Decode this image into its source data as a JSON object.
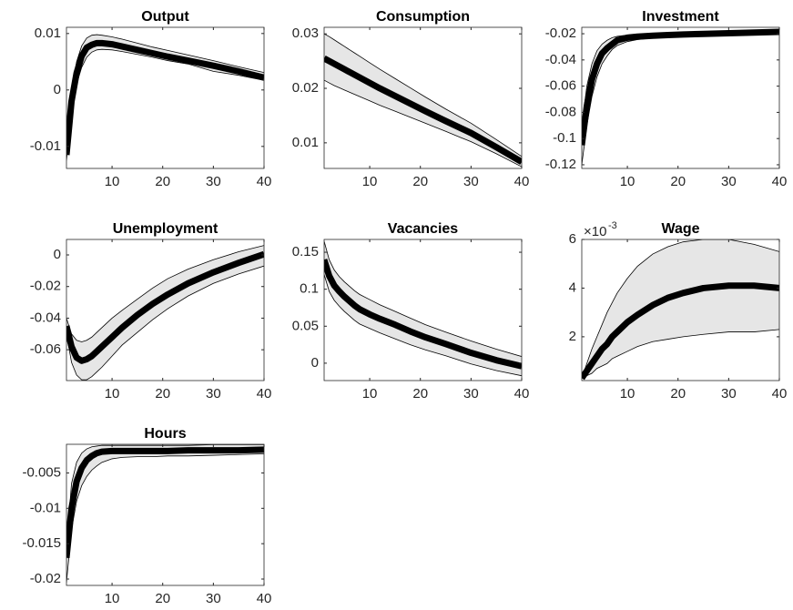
{
  "chart_data": [
    {
      "type": "line",
      "title": "Output",
      "x": [
        1,
        2,
        3,
        4,
        5,
        6,
        7,
        8,
        10,
        12,
        15,
        18,
        21,
        25,
        30,
        35,
        40
      ],
      "xlim": [
        1,
        40
      ],
      "xticks": [
        10,
        20,
        30,
        40
      ],
      "ylim": [
        -0.0139,
        0.0111
      ],
      "yticks": [
        -0.01,
        0,
        0.01
      ],
      "band_color": "#e6e6e6",
      "series": [
        {
          "color": "#000000",
          "values": [
            -0.0115,
            -0.002,
            0.003,
            0.006,
            0.0075,
            0.008,
            0.0083,
            0.0083,
            0.0081,
            0.0077,
            0.0071,
            0.0065,
            0.0059,
            0.0052,
            0.0043,
            0.0033,
            0.0022
          ],
          "lower": [
            -0.0125,
            -0.004,
            0.001,
            0.004,
            0.0058,
            0.0067,
            0.0071,
            0.0072,
            0.0071,
            0.0068,
            0.0063,
            0.0058,
            0.0052,
            0.0046,
            0.0033,
            0.0026,
            0.0017
          ],
          "upper": [
            -0.0105,
            0.0,
            0.005,
            0.0078,
            0.0092,
            0.0097,
            0.0098,
            0.0097,
            0.0094,
            0.009,
            0.0083,
            0.0076,
            0.007,
            0.0062,
            0.0052,
            0.0041,
            0.0031
          ]
        }
      ]
    },
    {
      "type": "line",
      "title": "Consumption",
      "x": [
        1,
        2,
        3,
        4,
        5,
        6,
        7,
        8,
        10,
        12,
        15,
        18,
        21,
        25,
        30,
        35,
        40
      ],
      "xlim": [
        1,
        40
      ],
      "xticks": [
        10,
        20,
        30,
        40
      ],
      "ylim": [
        0.0053,
        0.0312
      ],
      "yticks": [
        0.01,
        0.02,
        0.03
      ],
      "band_color": "#e6e6e6",
      "series": [
        {
          "color": "#000000",
          "values": [
            0.0255,
            0.025,
            0.0245,
            0.024,
            0.0235,
            0.023,
            0.0225,
            0.022,
            0.021,
            0.02,
            0.0186,
            0.0172,
            0.0158,
            0.014,
            0.0118,
            0.0092,
            0.0065
          ],
          "lower": [
            0.0215,
            0.021,
            0.0205,
            0.0201,
            0.0197,
            0.0193,
            0.0189,
            0.0185,
            0.0177,
            0.0169,
            0.0158,
            0.0147,
            0.0136,
            0.0121,
            0.0102,
            0.008,
            0.0056
          ],
          "upper": [
            0.03,
            0.0295,
            0.0289,
            0.0283,
            0.0277,
            0.0271,
            0.0265,
            0.0259,
            0.0247,
            0.0235,
            0.0218,
            0.0201,
            0.0184,
            0.0162,
            0.0136,
            0.0106,
            0.0075
          ]
        }
      ]
    },
    {
      "type": "line",
      "title": "Investment",
      "x": [
        1,
        2,
        3,
        4,
        5,
        6,
        7,
        8,
        10,
        12,
        15,
        18,
        21,
        25,
        30,
        35,
        40
      ],
      "xlim": [
        1,
        40
      ],
      "xticks": [
        10,
        20,
        30,
        40
      ],
      "ylim": [
        -0.1228,
        -0.0151
      ],
      "yticks": [
        -0.12,
        -0.1,
        -0.08,
        -0.06,
        -0.04,
        -0.02
      ],
      "band_color": "#e6e6e6",
      "series": [
        {
          "color": "#000000",
          "values": [
            -0.105,
            -0.075,
            -0.055,
            -0.043,
            -0.035,
            -0.031,
            -0.028,
            -0.025,
            -0.023,
            -0.0222,
            -0.0215,
            -0.021,
            -0.0206,
            -0.0201,
            -0.0196,
            -0.0191,
            -0.0186
          ],
          "lower": [
            -0.12,
            -0.09,
            -0.068,
            -0.053,
            -0.043,
            -0.037,
            -0.032,
            -0.029,
            -0.026,
            -0.0245,
            -0.0232,
            -0.0224,
            -0.0217,
            -0.021,
            -0.0203,
            -0.0197,
            -0.0191
          ],
          "upper": [
            -0.09,
            -0.06,
            -0.043,
            -0.033,
            -0.028,
            -0.025,
            -0.023,
            -0.022,
            -0.021,
            -0.0203,
            -0.0199,
            -0.0196,
            -0.0194,
            -0.0191,
            -0.0188,
            -0.0184,
            -0.018
          ]
        }
      ]
    },
    {
      "type": "line",
      "title": "Unemployment",
      "x": [
        1,
        2,
        3,
        4,
        5,
        6,
        7,
        8,
        10,
        12,
        15,
        18,
        21,
        25,
        30,
        35,
        40
      ],
      "xlim": [
        1,
        40
      ],
      "xticks": [
        10,
        20,
        30,
        40
      ],
      "ylim": [
        -0.0795,
        0.0098
      ],
      "yticks": [
        -0.06,
        -0.04,
        -0.02,
        0
      ],
      "band_color": "#e6e6e6",
      "series": [
        {
          "color": "#000000",
          "values": [
            -0.045,
            -0.058,
            -0.065,
            -0.067,
            -0.066,
            -0.064,
            -0.061,
            -0.058,
            -0.052,
            -0.046,
            -0.038,
            -0.031,
            -0.025,
            -0.018,
            -0.011,
            -0.005,
            0.0005
          ],
          "lower": [
            -0.05,
            -0.068,
            -0.076,
            -0.079,
            -0.079,
            -0.077,
            -0.074,
            -0.071,
            -0.064,
            -0.057,
            -0.049,
            -0.041,
            -0.034,
            -0.026,
            -0.018,
            -0.012,
            -0.007
          ],
          "upper": [
            -0.04,
            -0.05,
            -0.054,
            -0.055,
            -0.054,
            -0.052,
            -0.049,
            -0.046,
            -0.04,
            -0.035,
            -0.028,
            -0.021,
            -0.015,
            -0.009,
            -0.003,
            0.002,
            0.006
          ]
        }
      ]
    },
    {
      "type": "line",
      "title": "Vacancies",
      "x": [
        1,
        2,
        3,
        4,
        5,
        6,
        7,
        8,
        10,
        12,
        15,
        18,
        21,
        25,
        30,
        35,
        40
      ],
      "xlim": [
        1,
        40
      ],
      "xticks": [
        10,
        20,
        30,
        40
      ],
      "ylim": [
        -0.0235,
        0.1673
      ],
      "yticks": [
        0,
        0.05,
        0.1,
        0.15
      ],
      "band_color": "#e6e6e6",
      "series": [
        {
          "color": "#000000",
          "values": [
            0.14,
            0.118,
            0.105,
            0.097,
            0.09,
            0.084,
            0.078,
            0.073,
            0.066,
            0.06,
            0.052,
            0.043,
            0.035,
            0.026,
            0.014,
            0.004,
            -0.004
          ],
          "lower": [
            0.12,
            0.097,
            0.085,
            0.077,
            0.07,
            0.064,
            0.058,
            0.053,
            0.047,
            0.041,
            0.033,
            0.025,
            0.018,
            0.01,
            -0.001,
            -0.01,
            -0.017
          ],
          "upper": [
            0.165,
            0.14,
            0.126,
            0.117,
            0.11,
            0.104,
            0.098,
            0.093,
            0.086,
            0.079,
            0.07,
            0.061,
            0.052,
            0.042,
            0.03,
            0.019,
            0.009
          ]
        }
      ]
    },
    {
      "type": "line",
      "title": "Wage",
      "y_multiplier": {
        "base": "×10",
        "exponent": "-3"
      },
      "x": [
        1,
        2,
        3,
        4,
        5,
        6,
        7,
        8,
        10,
        12,
        15,
        18,
        21,
        25,
        30,
        35,
        40
      ],
      "xlim": [
        1,
        40
      ],
      "xticks": [
        10,
        20,
        30,
        40
      ],
      "ylim": [
        0.0002,
        0.006
      ],
      "yticks": [
        {
          "value": 0.002,
          "label": "2"
        },
        {
          "value": 0.004,
          "label": "4"
        },
        {
          "value": 0.006,
          "label": "6"
        }
      ],
      "band_color": "#e6e6e6",
      "series": [
        {
          "color": "#000000",
          "values": [
            0.0003,
            0.0006,
            0.0009,
            0.0012,
            0.0015,
            0.0017,
            0.002,
            0.0022,
            0.0026,
            0.0029,
            0.0033,
            0.0036,
            0.0038,
            0.004,
            0.0041,
            0.0041,
            0.004
          ],
          "lower": [
            0.0003,
            0.0004,
            0.0005,
            0.0007,
            0.0008,
            0.0009,
            0.0011,
            0.0012,
            0.0014,
            0.0016,
            0.0018,
            0.0019,
            0.002,
            0.0021,
            0.0022,
            0.0022,
            0.0023
          ],
          "upper": [
            0.0003,
            0.0009,
            0.0015,
            0.002,
            0.0025,
            0.003,
            0.0034,
            0.0038,
            0.0044,
            0.0049,
            0.0054,
            0.0057,
            0.0059,
            0.006,
            0.006,
            0.0058,
            0.0055
          ]
        }
      ]
    },
    {
      "type": "line",
      "title": "Hours",
      "x": [
        1,
        2,
        3,
        4,
        5,
        6,
        7,
        8,
        10,
        12,
        15,
        18,
        21,
        25,
        30,
        35,
        40
      ],
      "xlim": [
        1,
        40
      ],
      "xticks": [
        10,
        20,
        30,
        40
      ],
      "ylim": [
        -0.0209,
        -0.00095
      ],
      "yticks": [
        -0.02,
        -0.015,
        -0.01,
        -0.005
      ],
      "band_color": "#e6e6e6",
      "series": [
        {
          "color": "#000000",
          "values": [
            -0.017,
            -0.01,
            -0.0062,
            -0.0043,
            -0.0032,
            -0.0026,
            -0.0022,
            -0.002,
            -0.0019,
            -0.0019,
            -0.0019,
            -0.0019,
            -0.0019,
            -0.0018,
            -0.0018,
            -0.0018,
            -0.0017
          ],
          "lower": [
            -0.0205,
            -0.013,
            -0.009,
            -0.0068,
            -0.0055,
            -0.0046,
            -0.004,
            -0.0035,
            -0.003,
            -0.0028,
            -0.0027,
            -0.0027,
            -0.0026,
            -0.0026,
            -0.0025,
            -0.0024,
            -0.0023
          ],
          "upper": [
            -0.0155,
            -0.0065,
            -0.0035,
            -0.0022,
            -0.0016,
            -0.0013,
            -0.0012,
            -0.0011,
            -0.0011,
            -0.0011,
            -0.0011,
            -0.0011,
            -0.0011,
            -0.0011,
            -0.001,
            -0.001,
            -0.001
          ]
        }
      ]
    }
  ]
}
